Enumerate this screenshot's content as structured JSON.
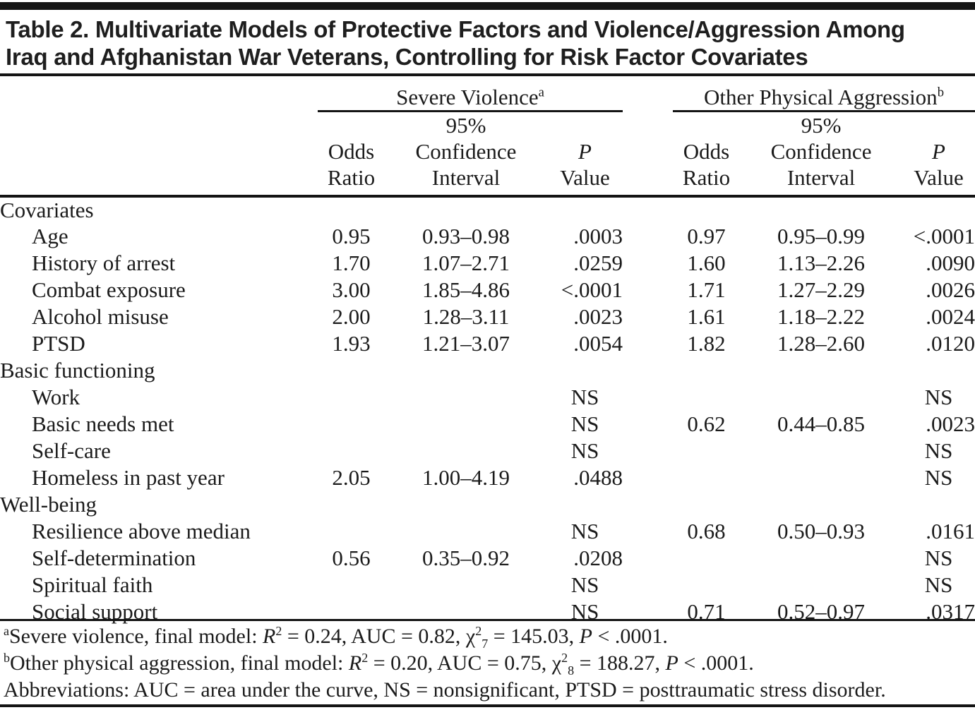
{
  "title": {
    "line1": "Table 2. Multivariate Models of Protective Factors and Violence/Aggression Among",
    "line2": "Iraq and Afghanistan War Veterans, Controlling for Risk Factor Covariates"
  },
  "table": {
    "groups": [
      {
        "label": "Severe Violence",
        "sup": "a"
      },
      {
        "label": "Other Physical Aggression",
        "sup": "b"
      }
    ],
    "subheaders": {
      "odds_line1": "Odds",
      "odds_line2": "Ratio",
      "ci_line1": "95%",
      "ci_line2": "Confidence",
      "ci_line3": "Interval",
      "p_line1": "P",
      "p_line2": "Value"
    },
    "rows": [
      {
        "label": "Covariates",
        "indent": false,
        "section": true,
        "cells": [
          "",
          "",
          "",
          "",
          "",
          ""
        ]
      },
      {
        "label": "Age",
        "indent": true,
        "section": false,
        "cells": [
          "0.95",
          "0.93–0.98",
          ".0003",
          "0.97",
          "0.95–0.99",
          "<.0001"
        ]
      },
      {
        "label": "History of arrest",
        "indent": true,
        "section": false,
        "cells": [
          "1.70",
          "1.07–2.71",
          ".0259",
          "1.60",
          "1.13–2.26",
          ".0090"
        ]
      },
      {
        "label": "Combat exposure",
        "indent": true,
        "section": false,
        "cells": [
          "3.00",
          "1.85–4.86",
          "<.0001",
          "1.71",
          "1.27–2.29",
          ".0026"
        ]
      },
      {
        "label": "Alcohol misuse",
        "indent": true,
        "section": false,
        "cells": [
          "2.00",
          "1.28–3.11",
          ".0023",
          "1.61",
          "1.18–2.22",
          ".0024"
        ]
      },
      {
        "label": "PTSD",
        "indent": true,
        "section": false,
        "cells": [
          "1.93",
          "1.21–3.07",
          ".0054",
          "1.82",
          "1.28–2.60",
          ".0120"
        ]
      },
      {
        "label": "Basic functioning",
        "indent": false,
        "section": true,
        "cells": [
          "",
          "",
          "",
          "",
          "",
          ""
        ]
      },
      {
        "label": "Work",
        "indent": true,
        "section": false,
        "cells": [
          "",
          "",
          "NS",
          "",
          "",
          "NS"
        ]
      },
      {
        "label": "Basic needs met",
        "indent": true,
        "section": false,
        "cells": [
          "",
          "",
          "NS",
          "0.62",
          "0.44–0.85",
          ".0023"
        ]
      },
      {
        "label": "Self-care",
        "indent": true,
        "section": false,
        "cells": [
          "",
          "",
          "NS",
          "",
          "",
          "NS"
        ]
      },
      {
        "label": "Homeless in past year",
        "indent": true,
        "section": false,
        "cells": [
          "2.05",
          "1.00–4.19",
          ".0488",
          "",
          "",
          "NS"
        ]
      },
      {
        "label": "Well-being",
        "indent": false,
        "section": true,
        "cells": [
          "",
          "",
          "",
          "",
          "",
          ""
        ]
      },
      {
        "label": "Resilience above median",
        "indent": true,
        "section": false,
        "cells": [
          "",
          "",
          "NS",
          "0.68",
          "0.50–0.93",
          ".0161"
        ]
      },
      {
        "label": "Self-determination",
        "indent": true,
        "section": false,
        "cells": [
          "0.56",
          "0.35–0.92",
          ".0208",
          "",
          "",
          "NS"
        ]
      },
      {
        "label": "Spiritual faith",
        "indent": true,
        "section": false,
        "cells": [
          "",
          "",
          "NS",
          "",
          "",
          "NS"
        ]
      },
      {
        "label": "Social support",
        "indent": true,
        "section": false,
        "cells": [
          "",
          "",
          "NS",
          "0.71",
          "0.52–0.97",
          ".0317"
        ]
      }
    ]
  },
  "footnotes": {
    "a": [
      {
        "t": "a",
        "s": "sup"
      },
      {
        "t": "Severe violence, final model: ",
        "s": ""
      },
      {
        "t": "R",
        "s": "i"
      },
      {
        "t": "2",
        "s": "sup"
      },
      {
        "t": " = 0.24, AUC = 0.82, ",
        "s": ""
      },
      {
        "t": "χ",
        "s": ""
      },
      {
        "t": "2",
        "s": "sup"
      },
      {
        "t": "7",
        "s": "sub"
      },
      {
        "t": " = 145.03, ",
        "s": ""
      },
      {
        "t": "P",
        "s": "i"
      },
      {
        "t": " < .0001.",
        "s": ""
      }
    ],
    "b": [
      {
        "t": "b",
        "s": "sup"
      },
      {
        "t": "Other physical aggression, final model: ",
        "s": ""
      },
      {
        "t": "R",
        "s": "i"
      },
      {
        "t": "2",
        "s": "sup"
      },
      {
        "t": " = 0.20, AUC = 0.75, ",
        "s": ""
      },
      {
        "t": "χ",
        "s": ""
      },
      {
        "t": "2",
        "s": "sup"
      },
      {
        "t": "8",
        "s": "sub"
      },
      {
        "t": " = 188.27, ",
        "s": ""
      },
      {
        "t": "P",
        "s": "i"
      },
      {
        "t": " < .0001.",
        "s": ""
      }
    ],
    "abbreviations": [
      {
        "t": "Abbreviations: AUC = area under the curve, NS = nonsignificant, PTSD = posttraumatic stress disorder.",
        "s": ""
      }
    ]
  }
}
